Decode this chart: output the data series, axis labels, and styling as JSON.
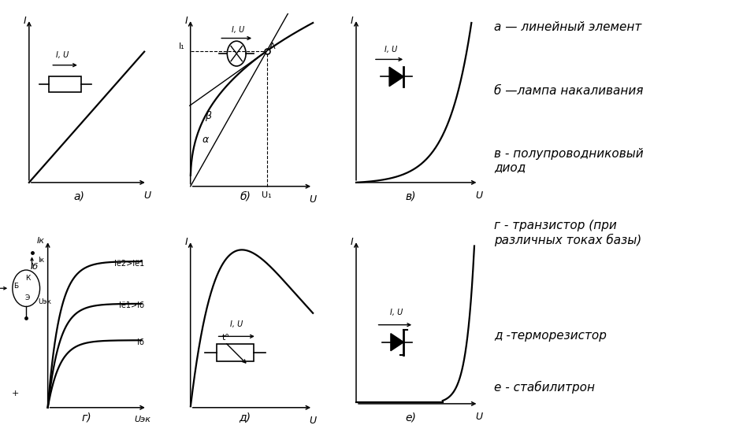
{
  "bg_color": "#ffffff",
  "line_color": "#000000",
  "legend_text": [
    "а — линейный элемент",
    "б —лампа накаливания",
    "в - полупроводниковый\nдиод",
    "г - транзистор (при\nразличных токах базы)",
    "д -терморезистор",
    "е - стабилитрон"
  ],
  "subplot_labels": [
    "а)",
    "б)",
    "в)",
    "г)",
    "д)",
    "е)"
  ],
  "font_size": 11
}
